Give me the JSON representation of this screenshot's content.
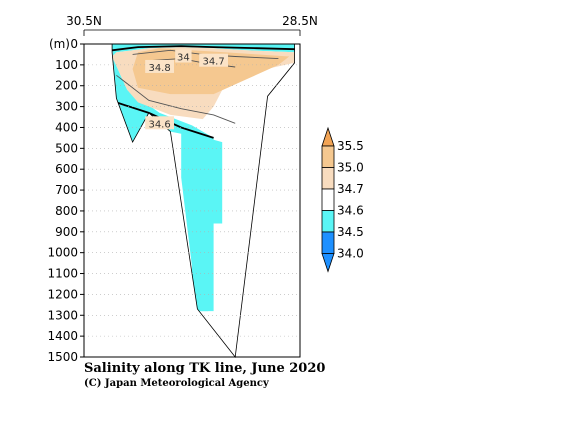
{
  "chart_data": {
    "type": "heatmap",
    "title": "Salinity along TK line, June 2020",
    "credit": "(C) Japan Meteorological Agency",
    "x_start_label": "30.5N",
    "x_end_label": "28.5N",
    "y_unit": "(m)",
    "y_ticks": [
      0,
      100,
      200,
      300,
      400,
      500,
      600,
      700,
      800,
      900,
      1000,
      1100,
      1200,
      1300,
      1400,
      1500
    ],
    "ylim": [
      0,
      1500
    ],
    "xlim": [
      30.5,
      28.5
    ],
    "grid": true,
    "contour_labels": [
      {
        "text": "34",
        "lat": 29.58,
        "depth": 60
      },
      {
        "text": "34.7",
        "lat": 29.3,
        "depth": 80
      },
      {
        "text": "34.8",
        "lat": 29.8,
        "depth": 110
      },
      {
        "text": "34.6",
        "lat": 29.8,
        "depth": 380
      }
    ],
    "legend": {
      "placement": "right",
      "levels": [
        "35.5",
        "35.0",
        "34.7",
        "34.6",
        "34.5",
        "34.0"
      ],
      "colors": [
        "#f2a455",
        "#f5c890",
        "#f8dcbf",
        "#ffffff",
        "#5af5f5",
        "#1e90ff"
      ]
    },
    "bottom_profile": [
      {
        "lat": 30.24,
        "depth": 40
      },
      {
        "lat": 30.2,
        "depth": 260
      },
      {
        "lat": 30.05,
        "depth": 470
      },
      {
        "lat": 29.9,
        "depth": 330
      },
      {
        "lat": 29.7,
        "depth": 420
      },
      {
        "lat": 29.45,
        "depth": 1270
      },
      {
        "lat": 29.1,
        "depth": 1500
      },
      {
        "lat": 28.8,
        "depth": 250
      },
      {
        "lat": 28.55,
        "depth": 90
      }
    ],
    "regions": [
      {
        "class": "34.5-34.6",
        "color": "#5af5f5",
        "polygon": [
          [
            30.24,
            0
          ],
          [
            28.55,
            0
          ],
          [
            28.55,
            40
          ],
          [
            29.0,
            30
          ],
          [
            29.3,
            20
          ],
          [
            29.6,
            15
          ],
          [
            29.9,
            20
          ],
          [
            30.2,
            40
          ],
          [
            30.24,
            60
          ],
          [
            30.1,
            220
          ],
          [
            29.8,
            330
          ],
          [
            29.5,
            390
          ],
          [
            29.3,
            450
          ],
          [
            29.3,
            1280
          ],
          [
            29.45,
            1280
          ],
          [
            29.6,
            640
          ],
          [
            29.6,
            430
          ],
          [
            29.7,
            420
          ],
          [
            29.9,
            330
          ],
          [
            30.05,
            470
          ],
          [
            30.2,
            260
          ]
        ]
      },
      {
        "class": "34.5-34.6",
        "color": "#5af5f5",
        "polygon": [
          [
            29.5,
            430
          ],
          [
            29.22,
            470
          ],
          [
            29.22,
            860
          ],
          [
            29.35,
            860
          ],
          [
            29.35,
            1280
          ],
          [
            29.5,
            1280
          ]
        ]
      },
      {
        "class": "34.6-34.7",
        "color": "#f8dcbf",
        "polygon": [
          [
            30.24,
            60
          ],
          [
            30.2,
            40
          ],
          [
            29.9,
            20
          ],
          [
            29.6,
            15
          ],
          [
            29.3,
            20
          ],
          [
            29.0,
            30
          ],
          [
            28.55,
            40
          ],
          [
            28.55,
            90
          ],
          [
            28.9,
            130
          ],
          [
            29.2,
            200
          ],
          [
            29.3,
            300
          ],
          [
            29.4,
            360
          ],
          [
            29.7,
            340
          ],
          [
            30.0,
            280
          ],
          [
            30.1,
            220
          ]
        ]
      },
      {
        "class": "34.7-35.0",
        "color": "#f5c890",
        "polygon": [
          [
            30.0,
            40
          ],
          [
            29.8,
            20
          ],
          [
            29.5,
            30
          ],
          [
            29.2,
            40
          ],
          [
            28.9,
            50
          ],
          [
            28.6,
            60
          ],
          [
            28.7,
            100
          ],
          [
            29.0,
            170
          ],
          [
            29.3,
            240
          ],
          [
            29.7,
            240
          ],
          [
            30.0,
            210
          ],
          [
            30.05,
            120
          ]
        ]
      }
    ],
    "contour_lines": [
      {
        "level": "34.5",
        "thick": true,
        "points": [
          [
            30.24,
            30
          ],
          [
            30.0,
            15
          ],
          [
            29.6,
            10
          ],
          [
            29.3,
            15
          ],
          [
            28.9,
            20
          ],
          [
            28.55,
            25
          ]
        ]
      },
      {
        "level": "34.6",
        "thick": false,
        "points": [
          [
            30.2,
            150
          ],
          [
            29.9,
            270
          ],
          [
            29.6,
            310
          ],
          [
            29.3,
            340
          ],
          [
            29.1,
            380
          ]
        ]
      },
      {
        "level": "34.7",
        "thick": false,
        "points": [
          [
            30.05,
            50
          ],
          [
            29.7,
            30
          ],
          [
            29.4,
            50
          ],
          [
            29.1,
            60
          ],
          [
            28.7,
            70
          ]
        ]
      },
      {
        "level": "34.8",
        "thick": false,
        "points": [
          [
            29.9,
            80
          ],
          [
            29.6,
            70
          ],
          [
            29.4,
            90
          ],
          [
            29.1,
            110
          ]
        ]
      },
      {
        "level": "34.5",
        "thick": true,
        "points": [
          [
            30.2,
            280
          ],
          [
            29.9,
            330
          ],
          [
            29.6,
            400
          ],
          [
            29.3,
            450
          ]
        ]
      }
    ]
  }
}
